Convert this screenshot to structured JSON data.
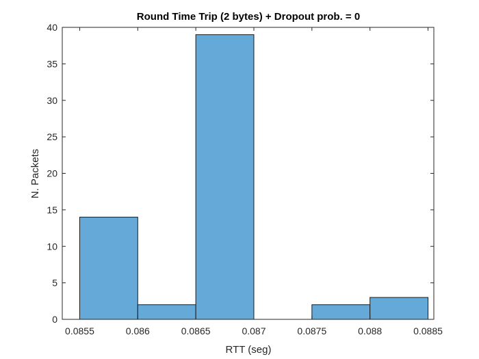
{
  "chart_data": {
    "type": "bar",
    "title": "Round Time Trip (2 bytes) + Dropout prob. = 0",
    "xlabel": "RTT (seg)",
    "ylabel": "N. Packets",
    "xlim": [
      0.08535,
      0.08855
    ],
    "ylim": [
      0,
      40
    ],
    "bin_edges": [
      0.0855,
      0.086,
      0.0865,
      0.087,
      0.0875,
      0.088,
      0.0885
    ],
    "values": [
      14,
      2,
      39,
      0,
      2,
      3
    ],
    "xticks": [
      0.0855,
      0.086,
      0.0865,
      0.087,
      0.0875,
      0.088,
      0.0885
    ],
    "xtick_labels": [
      "0.0855",
      "0.086",
      "0.0865",
      "0.087",
      "0.0875",
      "0.088",
      "0.0885"
    ],
    "yticks": [
      0,
      5,
      10,
      15,
      20,
      25,
      30,
      35,
      40
    ],
    "ytick_labels": [
      "0",
      "5",
      "10",
      "15",
      "20",
      "25",
      "30",
      "35",
      "40"
    ],
    "grid": false,
    "colors": {
      "bar_fill": "#64a9d8",
      "bar_edge": "#1a1a1a",
      "axis": "#262626"
    }
  }
}
